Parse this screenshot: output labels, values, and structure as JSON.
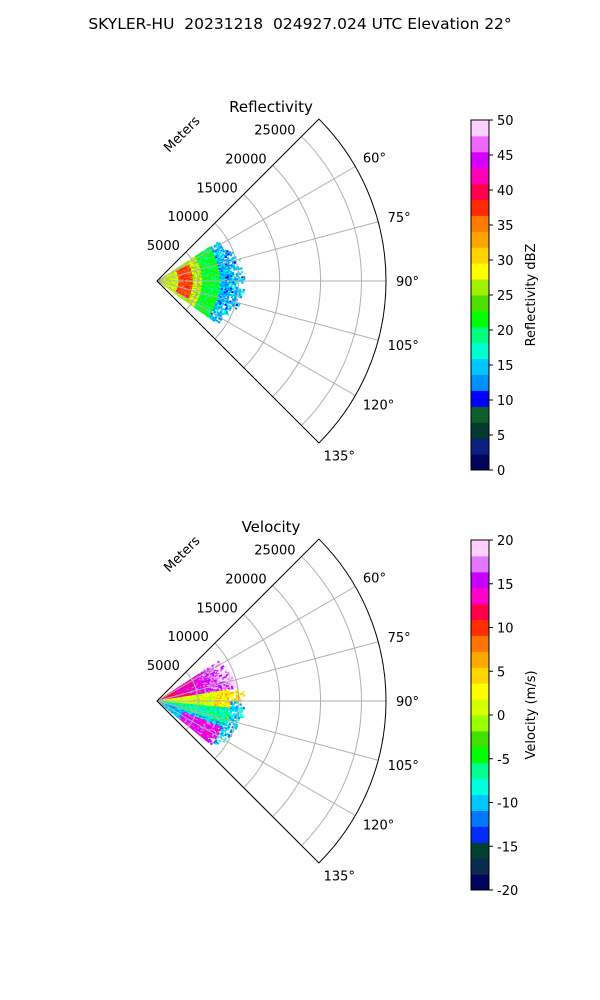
{
  "figure": {
    "title": "SKYLER-HU  20231218  024927.024 UTC Elevation 22°"
  },
  "chart_data": [
    {
      "type": "heatmap",
      "projection": "polar-sector",
      "title": "Reflectivity",
      "range_axis_label": "Meters",
      "range_ticks": [
        5000,
        10000,
        15000,
        20000,
        25000
      ],
      "r_max": 28000,
      "angle_ticks_deg": [
        60,
        75,
        90,
        105,
        120,
        135
      ],
      "angle_range_deg": [
        45,
        135
      ],
      "grid": true,
      "colorbar": {
        "label": "Reflectivity dBZ",
        "min": 0,
        "max": 50,
        "ticks": [
          0,
          5,
          10,
          15,
          20,
          25,
          30,
          35,
          40,
          45,
          50
        ]
      },
      "data_extent": {
        "angle_deg": [
          57,
          125
        ],
        "range_m": [
          0,
          10500
        ]
      },
      "features": [
        {
          "description_values": "band of 35–40 dBZ near range 3500 m",
          "value": 37
        },
        {
          "description_values": "20–30 dBZ core near radar",
          "value": 27
        },
        {
          "description_values": "10–20 dBZ at outer edge",
          "value": 15
        }
      ]
    },
    {
      "type": "heatmap",
      "projection": "polar-sector",
      "title": "Velocity",
      "range_axis_label": "Meters",
      "range_ticks": [
        5000,
        10000,
        15000,
        20000,
        25000
      ],
      "r_max": 28000,
      "angle_ticks_deg": [
        60,
        75,
        90,
        105,
        120,
        135
      ],
      "angle_range_deg": [
        45,
        135
      ],
      "grid": true,
      "colorbar": {
        "label": "Velocity (m/s)",
        "min": -20,
        "max": 20,
        "ticks": [
          -20,
          -15,
          -10,
          -5,
          0,
          5,
          10,
          15,
          20
        ]
      },
      "data_extent": {
        "angle_deg": [
          57,
          128
        ],
        "range_m": [
          0,
          10500
        ]
      },
      "features": [
        {
          "description_values": "positive 10–20 m/s on left (60–80°)",
          "value": 14
        },
        {
          "description_values": "near zero along 90°",
          "value": 0
        },
        {
          "description_values": "negative -10 to -5 m/s on right (95–120°)",
          "value": -8
        },
        {
          "description_values": "folded 15–20 m/s at outer right edge",
          "value": 16
        }
      ]
    }
  ],
  "colors": {
    "grid": "#b0b0b0",
    "refl_scale": [
      "#00045c",
      "#0a1f7e",
      "#013a2e",
      "#0f5f2c",
      "#0000ff",
      "#0090ff",
      "#00c6ff",
      "#00ffd0",
      "#00ff7f",
      "#00ff00",
      "#4fe000",
      "#a0f000",
      "#ffff00",
      "#ffd200",
      "#ffa500",
      "#ff7b00",
      "#ff2b00",
      "#ff0050",
      "#ff00b4",
      "#d700ff",
      "#ee66ff",
      "#ffd0ff"
    ],
    "vel_scale": [
      "#00045c",
      "#0a2b4e",
      "#014032",
      "#002bff",
      "#0076ff",
      "#00c8ff",
      "#00ffdf",
      "#00ff8c",
      "#00ff00",
      "#3fe000",
      "#9aff00",
      "#d8ff00",
      "#ffff00",
      "#ffd500",
      "#ffa800",
      "#ff7400",
      "#ff2c00",
      "#ff004c",
      "#ff00cc",
      "#c800ff",
      "#e277ff",
      "#ffd0ff"
    ]
  }
}
